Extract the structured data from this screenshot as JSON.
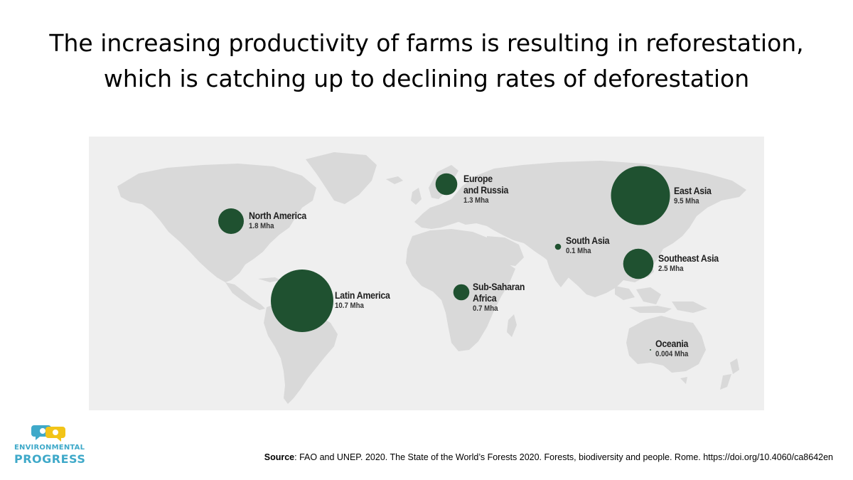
{
  "title": {
    "line1": "The increasing productivity of farms is resulting in reforestation,",
    "line2": "which is catching up to declining rates of deforestation"
  },
  "map": {
    "land_color": "#d9d9d9",
    "ocean_color": "#efefef",
    "bubble_color": "#1f5130",
    "unit": "Mha",
    "regions": [
      {
        "key": "north_america",
        "name_lines": [
          "North America"
        ],
        "value_text": "1.8 Mha",
        "value": 1.8
      },
      {
        "key": "latin_america",
        "name_lines": [
          "Latin America"
        ],
        "value_text": "10.7 Mha",
        "value": 10.7
      },
      {
        "key": "europe_russia",
        "name_lines": [
          "Europe",
          "and Russia"
        ],
        "value_text": "1.3 Mha",
        "value": 1.3
      },
      {
        "key": "sub_saharan_africa",
        "name_lines": [
          "Sub-Saharan",
          "Africa"
        ],
        "value_text": "0.7 Mha",
        "value": 0.7
      },
      {
        "key": "south_asia",
        "name_lines": [
          "South Asia"
        ],
        "value_text": "0.1 Mha",
        "value": 0.1
      },
      {
        "key": "east_asia",
        "name_lines": [
          "East Asia"
        ],
        "value_text": "9.5 Mha",
        "value": 9.5
      },
      {
        "key": "southeast_asia",
        "name_lines": [
          "Southeast Asia"
        ],
        "value_text": "2.5 Mha",
        "value": 2.5
      },
      {
        "key": "oceania",
        "name_lines": [
          "Oceania"
        ],
        "value_text": "0.004 Mha",
        "value": 0.004
      }
    ]
  },
  "source": {
    "label": "Source",
    "text": ": FAO and UNEP. 2020. The State of the World’s Forests 2020. Forests, biodiversity and people. Rome. https://doi.org/10.4060/ca8642en"
  },
  "logo": {
    "line1": "ENVIRONMENTAL",
    "line2": "PROGRESS",
    "icon": "ep-speech-bubbles-icon",
    "colors": {
      "blue": "#3fa9c9",
      "yellow": "#f2c418"
    }
  }
}
